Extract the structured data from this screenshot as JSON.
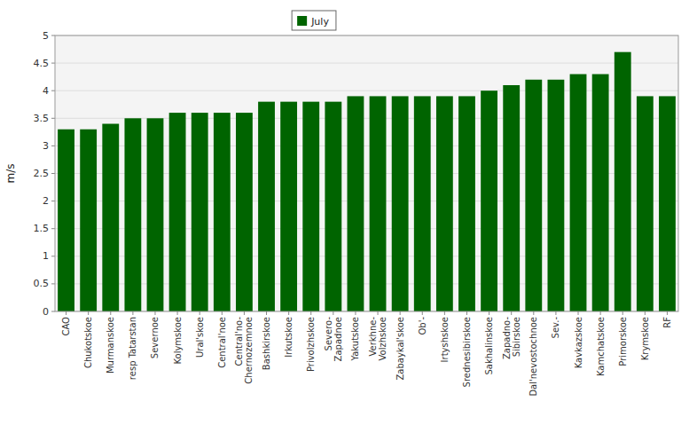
{
  "chart_data": {
    "type": "bar",
    "y_label": "m/s",
    "categories": [
      "CAO",
      "Chukotskoe",
      "Murmanskoe",
      "resp Tatarstan",
      "Severnoe",
      "Kolymskoe",
      "Ural'skoe",
      "Central'noe",
      "Central'no-\nChernozemnoe",
      "Bashkirskoe",
      "Irkutskoe",
      "Privolzhskoe",
      "Severo-\nZapadnoe",
      "Yakutskoe",
      "Verkhne-\nVolzhskoe",
      "Zabaykal'skoe",
      "Ob'-",
      "Irtyshskoe",
      "Srednesibirskoe",
      "Sakhalinskoe",
      "Zapadno-\nSibirskoe",
      "Dal'nevostochnoe",
      "Sev.-",
      "Kavkazskoe",
      "Kamchatskoe",
      "Primorskoe",
      "Krymskoe",
      "RF"
    ],
    "series": [
      {
        "name": "July",
        "color": "#006400",
        "values": [
          3.3,
          3.3,
          3.4,
          3.5,
          3.5,
          3.6,
          3.6,
          3.6,
          3.6,
          3.8,
          3.8,
          3.8,
          3.8,
          3.9,
          3.9,
          3.9,
          3.9,
          3.9,
          3.9,
          4.0,
          4.1,
          4.2,
          4.2,
          4.3,
          4.3,
          4.7,
          3.9,
          3.9
        ]
      }
    ],
    "ylim": [
      0,
      5
    ],
    "yticks": [
      0,
      0.5,
      1,
      1.5,
      2,
      2.5,
      3,
      3.5,
      4,
      4.5,
      5
    ],
    "grid": true,
    "legend": "top"
  }
}
